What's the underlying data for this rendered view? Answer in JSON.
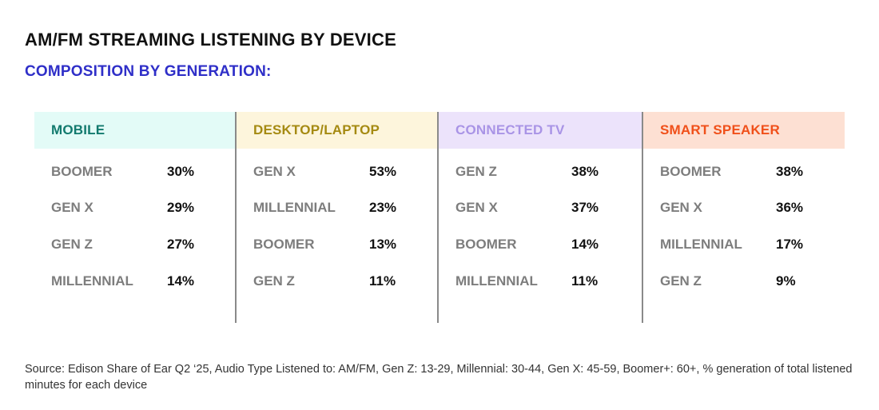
{
  "title": "AM/FM STREAMING LISTENING BY DEVICE",
  "subtitle": "COMPOSITION BY GENERATION:",
  "source": "Source: Edison Share of Ear Q2 ‘25, Audio Type Listened to: AM/FM, Gen Z: 13-29, Millennial: 30-44, Gen X: 45-59, Boomer+: 60+, % generation of total listened minutes for each device",
  "chart_data": {
    "type": "table",
    "panels": [
      {
        "device": "MOBILE",
        "header_bg": "#e3fbf7",
        "header_color": "#127a6e",
        "rows": [
          {
            "generation": "BOOMER",
            "value": "30%"
          },
          {
            "generation": "GEN X",
            "value": "29%"
          },
          {
            "generation": "GEN Z",
            "value": "27%"
          },
          {
            "generation": "MILLENNIAL",
            "value": "14%"
          }
        ]
      },
      {
        "device": "DESKTOP/LAPTOP",
        "header_bg": "#fdf5dc",
        "header_color": "#a58a12",
        "rows": [
          {
            "generation": "GEN X",
            "value": "53%"
          },
          {
            "generation": "MILLENNIAL",
            "value": "23%"
          },
          {
            "generation": "BOOMER",
            "value": "13%"
          },
          {
            "generation": "GEN Z",
            "value": "11%"
          }
        ]
      },
      {
        "device": "CONNECTED TV",
        "header_bg": "#ece3fb",
        "header_color": "#a994e6",
        "rows": [
          {
            "generation": "GEN Z",
            "value": "38%"
          },
          {
            "generation": "GEN X",
            "value": "37%"
          },
          {
            "generation": "BOOMER",
            "value": "14%"
          },
          {
            "generation": "MILLENNIAL",
            "value": "11%"
          }
        ]
      },
      {
        "device": "SMART SPEAKER",
        "header_bg": "#fde0d3",
        "header_color": "#f0501a",
        "rows": [
          {
            "generation": "BOOMER",
            "value": "38%"
          },
          {
            "generation": "GEN X",
            "value": "36%"
          },
          {
            "generation": "MILLENNIAL",
            "value": "17%"
          },
          {
            "generation": "GEN Z",
            "value": "9%"
          }
        ]
      }
    ]
  }
}
